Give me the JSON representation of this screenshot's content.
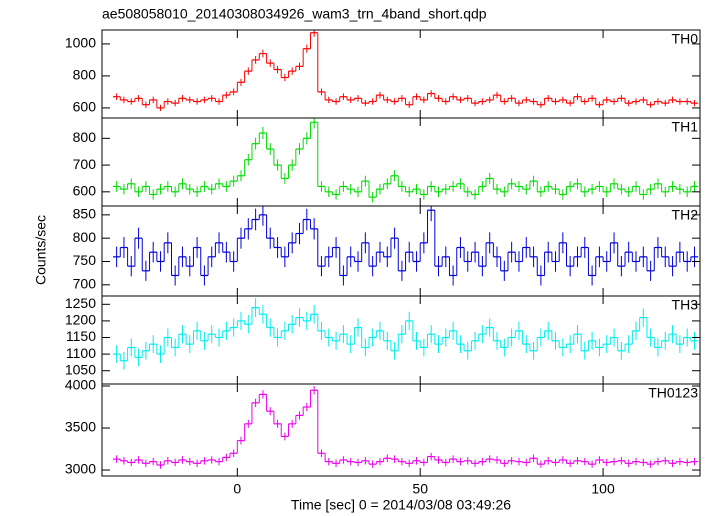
{
  "chart_data": {
    "type": "line",
    "title": "ae508058010_20140308034926_wam3_trn_4band_short.qdp",
    "xlabel": "Time [sec] 0 = 2014/03/08 03:49:26",
    "ylabel": "Counts/sec",
    "xlim": [
      -37,
      126.5
    ],
    "xticks": [
      0,
      50,
      100
    ],
    "x": [
      -33,
      -31,
      -29,
      -27,
      -25,
      -23,
      -21,
      -19,
      -17,
      -15,
      -13,
      -11,
      -9,
      -7,
      -5,
      -3,
      -1,
      1,
      3,
      5,
      7,
      9,
      11,
      13,
      15,
      17,
      19,
      21,
      23,
      25,
      27,
      29,
      31,
      33,
      35,
      37,
      39,
      41,
      43,
      45,
      47,
      49,
      51,
      53,
      55,
      57,
      59,
      61,
      63,
      65,
      67,
      69,
      71,
      73,
      75,
      77,
      79,
      81,
      83,
      85,
      87,
      89,
      91,
      93,
      95,
      97,
      99,
      101,
      103,
      105,
      107,
      109,
      111,
      113,
      115,
      117,
      119,
      121,
      123,
      125
    ],
    "series": [
      {
        "name": "TH0",
        "color": "#ff0000",
        "ylim": [
          537,
          1087
        ],
        "yticks": [
          600,
          800,
          1000
        ],
        "values": [
          670,
          650,
          640,
          660,
          620,
          650,
          600,
          640,
          630,
          660,
          650,
          640,
          650,
          660,
          640,
          680,
          700,
          760,
          830,
          900,
          940,
          880,
          840,
          790,
          830,
          860,
          970,
          1070,
          700,
          650,
          640,
          670,
          650,
          660,
          630,
          640,
          680,
          650,
          640,
          660,
          620,
          670,
          650,
          690,
          660,
          640,
          670,
          650,
          660,
          630,
          640,
          650,
          680,
          640,
          660,
          630,
          650,
          640,
          620,
          660,
          640,
          650,
          630,
          670,
          640,
          660,
          620,
          650,
          640,
          660,
          630,
          640,
          650,
          620,
          640,
          630,
          650,
          640,
          640,
          630
        ]
      },
      {
        "name": "TH1",
        "color": "#00dd00",
        "ylim": [
          547,
          876
        ],
        "yticks": [
          600,
          700,
          800
        ],
        "values": [
          620,
          610,
          630,
          600,
          620,
          590,
          610,
          620,
          600,
          630,
          610,
          600,
          620,
          610,
          630,
          620,
          640,
          660,
          720,
          780,
          820,
          760,
          700,
          650,
          700,
          760,
          800,
          860,
          620,
          600,
          590,
          620,
          610,
          600,
          640,
          580,
          610,
          630,
          660,
          620,
          600,
          610,
          590,
          620,
          600,
          610,
          620,
          630,
          600,
          590,
          620,
          650,
          610,
          600,
          630,
          620,
          610,
          640,
          600,
          620,
          610,
          590,
          620,
          630,
          600,
          610,
          620,
          600,
          630,
          610,
          600,
          620,
          590,
          610,
          630,
          600,
          620,
          610,
          600,
          620
        ]
      },
      {
        "name": "TH2",
        "color": "#0000dd",
        "ylim": [
          676,
          869
        ],
        "yticks": [
          700,
          750,
          800,
          850
        ],
        "values": [
          760,
          780,
          740,
          800,
          730,
          770,
          750,
          790,
          720,
          760,
          740,
          780,
          720,
          760,
          790,
          770,
          750,
          800,
          820,
          840,
          850,
          800,
          780,
          760,
          790,
          810,
          840,
          820,
          740,
          760,
          780,
          720,
          760,
          750,
          790,
          740,
          770,
          760,
          800,
          730,
          770,
          750,
          790,
          860,
          740,
          760,
          720,
          780,
          750,
          770,
          740,
          790,
          760,
          730,
          770,
          750,
          780,
          760,
          720,
          770,
          750,
          790,
          740,
          760,
          780,
          720,
          760,
          750,
          790,
          740,
          770,
          750,
          760,
          730,
          780,
          760,
          740,
          770,
          750,
          760
        ]
      },
      {
        "name": "TH3",
        "color": "#00eeee",
        "ylim": [
          1010,
          1275
        ],
        "yticks": [
          1050,
          1100,
          1150,
          1200,
          1250
        ],
        "values": [
          1100,
          1080,
          1120,
          1090,
          1110,
          1130,
          1100,
          1150,
          1120,
          1160,
          1130,
          1170,
          1140,
          1160,
          1150,
          1170,
          1180,
          1200,
          1190,
          1240,
          1220,
          1180,
          1150,
          1170,
          1190,
          1210,
          1200,
          1220,
          1170,
          1150,
          1140,
          1160,
          1130,
          1180,
          1120,
          1150,
          1170,
          1140,
          1110,
          1160,
          1200,
          1140,
          1120,
          1160,
          1130,
          1150,
          1170,
          1130,
          1110,
          1140,
          1160,
          1180,
          1140,
          1120,
          1150,
          1170,
          1130,
          1110,
          1150,
          1170,
          1140,
          1120,
          1130,
          1160,
          1110,
          1140,
          1120,
          1130,
          1150,
          1110,
          1130,
          1170,
          1210,
          1150,
          1120,
          1140,
          1160,
          1130,
          1150,
          1140
        ]
      },
      {
        "name": "TH0123",
        "color": "#ee00ee",
        "ylim": [
          2929,
          4024
        ],
        "yticks": [
          3000,
          3500,
          4000
        ],
        "values": [
          3130,
          3110,
          3090,
          3120,
          3080,
          3100,
          3060,
          3110,
          3090,
          3120,
          3100,
          3080,
          3110,
          3120,
          3100,
          3150,
          3200,
          3350,
          3550,
          3800,
          3900,
          3700,
          3550,
          3400,
          3550,
          3650,
          3750,
          3950,
          3200,
          3100,
          3080,
          3120,
          3100,
          3090,
          3110,
          3070,
          3100,
          3140,
          3130,
          3100,
          3080,
          3110,
          3090,
          3160,
          3120,
          3090,
          3130,
          3100,
          3110,
          3080,
          3100,
          3130,
          3120,
          3080,
          3110,
          3100,
          3090,
          3140,
          3070,
          3110,
          3090,
          3120,
          3080,
          3110,
          3100,
          3070,
          3120,
          3090,
          3100,
          3110,
          3080,
          3100,
          3090,
          3070,
          3100,
          3110,
          3080,
          3100,
          3090,
          3100
        ]
      }
    ]
  }
}
